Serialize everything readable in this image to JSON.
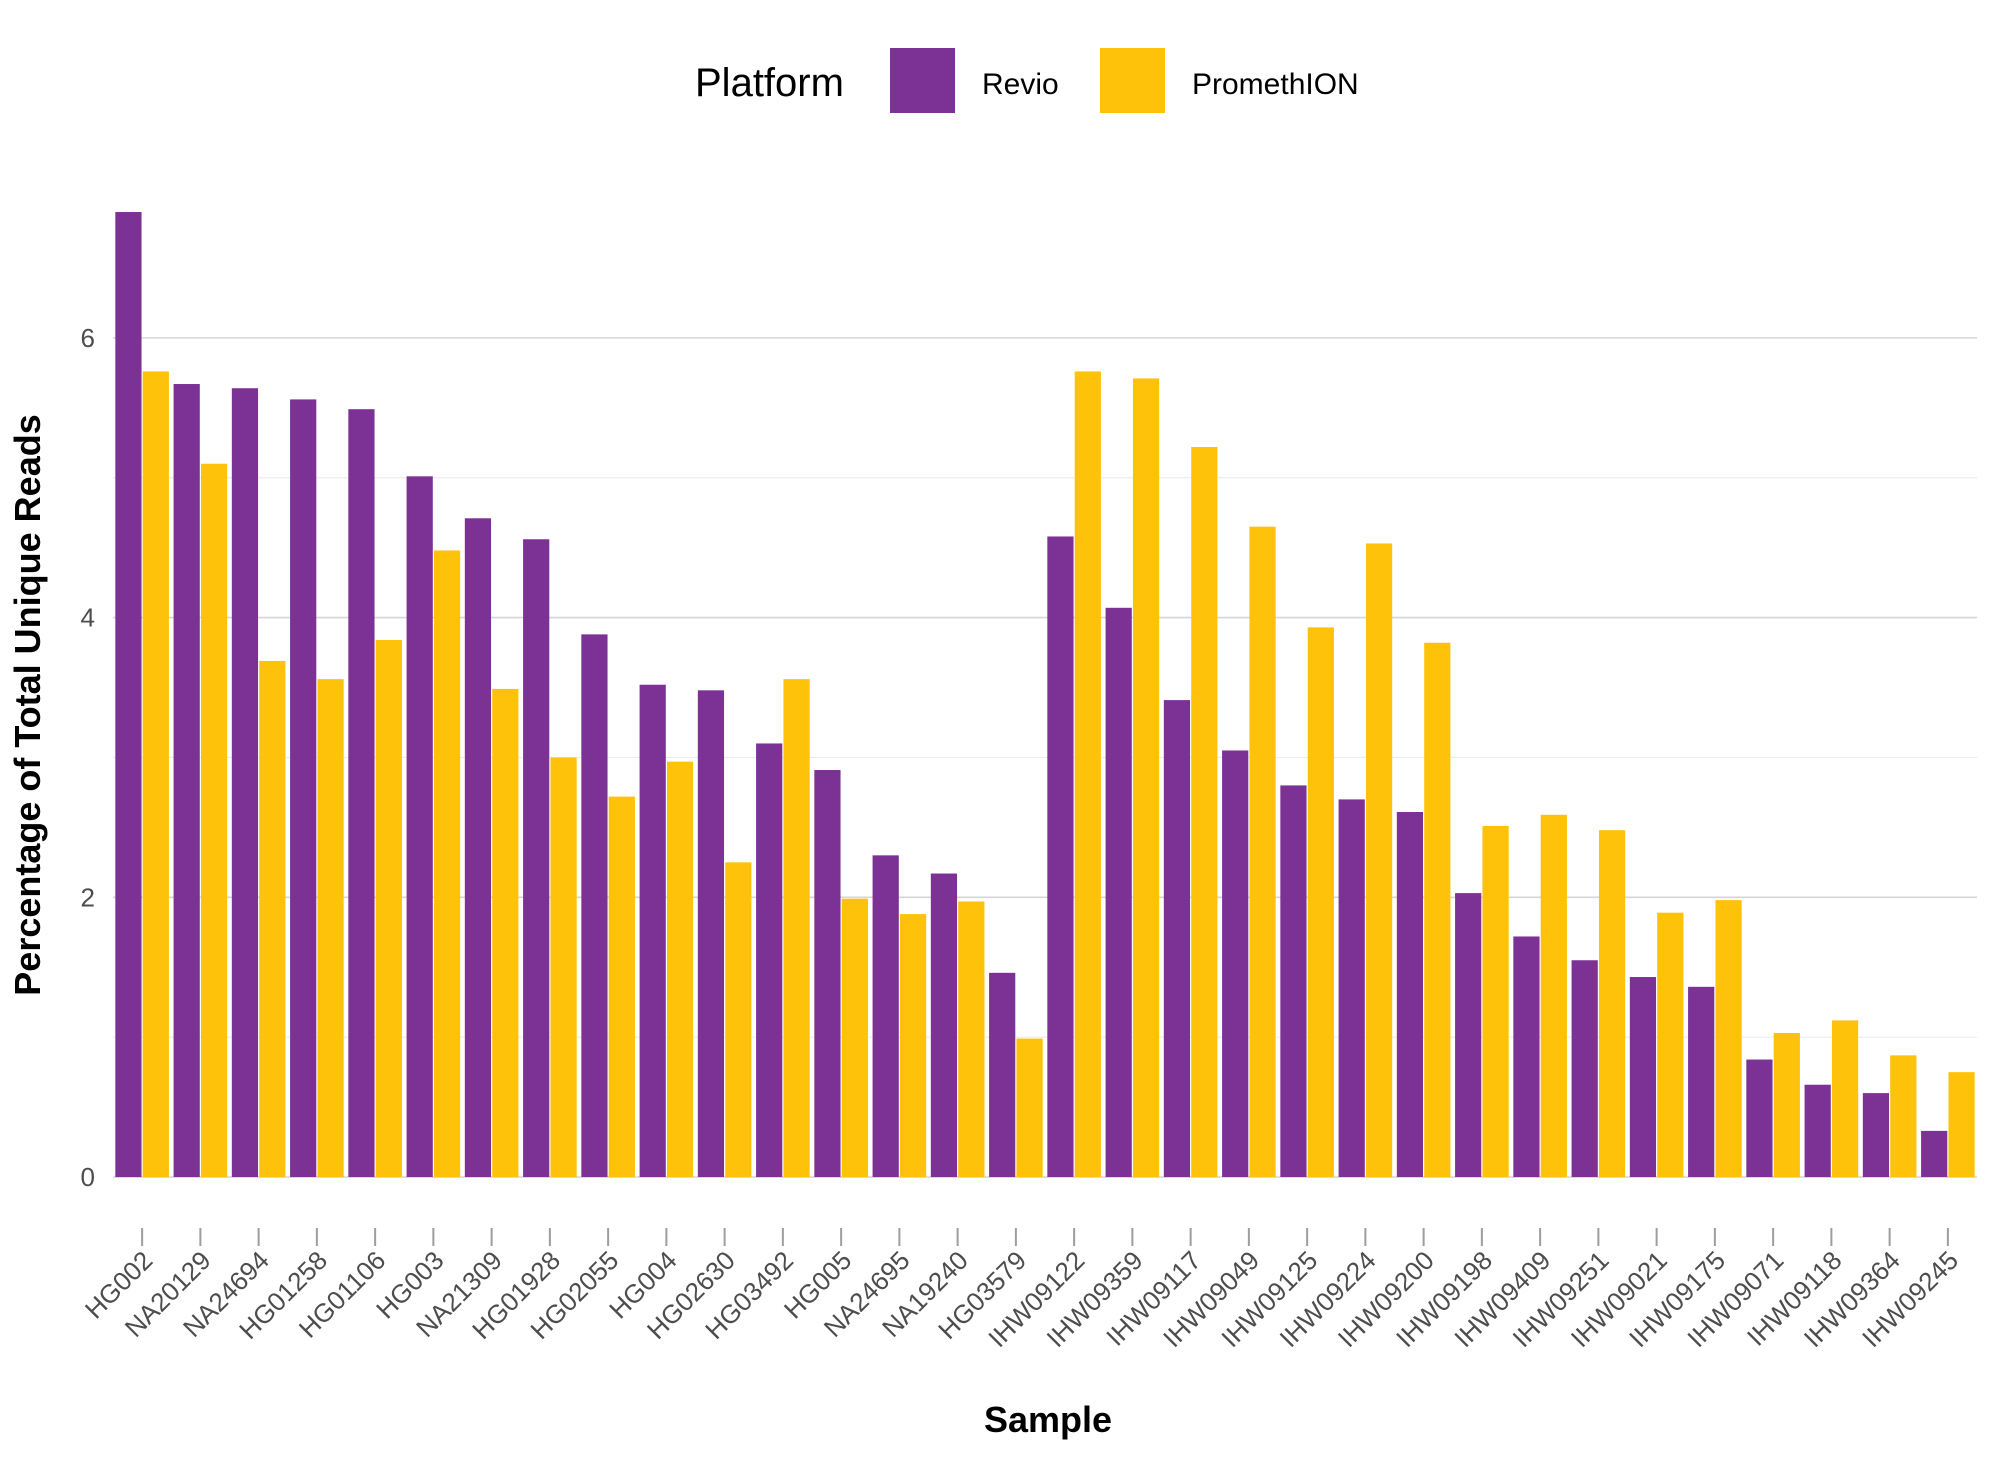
{
  "chart_data": {
    "type": "bar",
    "title": "",
    "xlabel": "Sample",
    "ylabel": "Percentage of Total Unique Reads",
    "ylim": [
      -0.2,
      6.95
    ],
    "yticks": [
      0,
      2,
      4,
      6
    ],
    "grid": true,
    "legend": {
      "title": "Platform",
      "position": "top"
    },
    "categories": [
      "HG002",
      "NA20129",
      "NA24694",
      "HG01258",
      "HG01106",
      "HG003",
      "NA21309",
      "HG01928",
      "HG02055",
      "HG004",
      "HG02630",
      "HG03492",
      "HG005",
      "NA24695",
      "NA19240",
      "HG03579",
      "IHW09122",
      "IHW09359",
      "IHW09117",
      "IHW09049",
      "IHW09125",
      "IHW09224",
      "IHW09200",
      "IHW09198",
      "IHW09409",
      "IHW09251",
      "IHW09021",
      "IHW09175",
      "IHW09071",
      "IHW09118",
      "IHW09364",
      "IHW09245"
    ],
    "series": [
      {
        "name": "Revio",
        "color": "#7B3294",
        "values": [
          6.9,
          5.67,
          5.64,
          5.56,
          5.49,
          5.01,
          4.71,
          4.56,
          3.88,
          3.52,
          3.48,
          3.1,
          2.91,
          2.3,
          2.17,
          1.46,
          4.58,
          4.07,
          3.41,
          3.05,
          2.8,
          2.7,
          2.61,
          2.03,
          1.72,
          1.55,
          1.43,
          1.36,
          0.84,
          0.66,
          0.6,
          0.33
        ]
      },
      {
        "name": "PromethION",
        "color": "#FFC20A",
        "values": [
          5.76,
          5.1,
          3.69,
          3.56,
          3.84,
          4.48,
          3.49,
          3.0,
          2.72,
          2.97,
          2.25,
          3.56,
          1.99,
          1.88,
          1.97,
          0.99,
          5.76,
          5.71,
          5.22,
          4.65,
          3.93,
          4.53,
          3.82,
          2.51,
          2.59,
          2.48,
          1.89,
          1.98,
          1.03,
          1.12,
          0.87,
          0.75
        ]
      }
    ]
  }
}
